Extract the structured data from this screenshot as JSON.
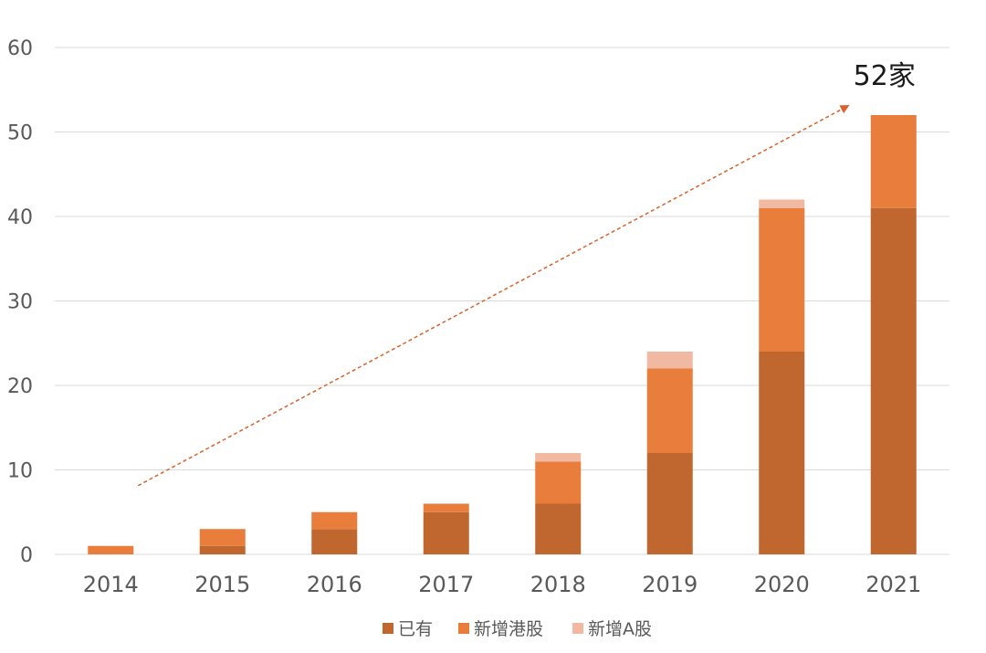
{
  "chart_data": {
    "type": "bar",
    "stacked": true,
    "categories": [
      "2014",
      "2015",
      "2016",
      "2017",
      "2018",
      "2019",
      "2020",
      "2021"
    ],
    "series": [
      {
        "name": "已有",
        "color": "#c0672f",
        "values": [
          0,
          1,
          3,
          5,
          6,
          12,
          24,
          41
        ]
      },
      {
        "name": "新增港股",
        "color": "#e97e3c",
        "values": [
          1,
          2,
          2,
          1,
          5,
          10,
          17,
          11
        ]
      },
      {
        "name": "新增A股",
        "color": "#f2b9a2",
        "values": [
          0,
          0,
          0,
          0,
          1,
          2,
          1,
          0
        ]
      }
    ],
    "ylim": [
      0,
      60
    ],
    "yticks": [
      0,
      10,
      20,
      30,
      40,
      50,
      60
    ],
    "grid": true,
    "legend_position": "bottom",
    "annotation": {
      "text": "52家",
      "arrow_from": {
        "x": "2014",
        "y": 9
      },
      "arrow_to": {
        "x": "2021",
        "y": 52
      },
      "arrow_color": "#d9622b"
    },
    "title": "",
    "xlabel": "",
    "ylabel": ""
  }
}
